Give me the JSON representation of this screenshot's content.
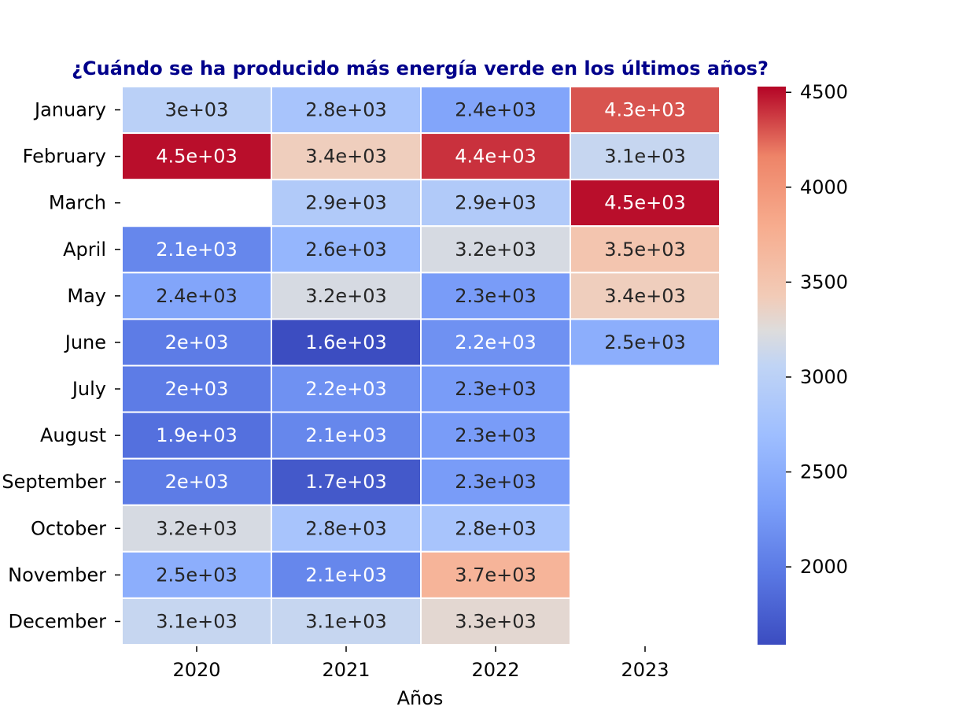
{
  "chart_data": {
    "type": "heatmap",
    "title": "¿Cuándo se ha producido más energía verde en los últimos años?",
    "xlabel": "Años",
    "ylabel": "",
    "x_categories": [
      "2020",
      "2021",
      "2022",
      "2023"
    ],
    "y_categories": [
      "January",
      "February",
      "March",
      "April",
      "May",
      "June",
      "July",
      "August",
      "September",
      "October",
      "November",
      "December"
    ],
    "values": [
      [
        3000,
        2800,
        2400,
        4300
      ],
      [
        4500,
        3400,
        4400,
        3100
      ],
      [
        null,
        2900,
        2900,
        4500
      ],
      [
        2100,
        2600,
        3200,
        3500
      ],
      [
        2400,
        3200,
        2300,
        3400
      ],
      [
        2000,
        1600,
        2200,
        2500
      ],
      [
        2000,
        2200,
        2300,
        null
      ],
      [
        1900,
        2100,
        2300,
        null
      ],
      [
        2000,
        1700,
        2300,
        null
      ],
      [
        3200,
        2800,
        2800,
        null
      ],
      [
        2500,
        2100,
        3700,
        null
      ],
      [
        3100,
        3100,
        3300,
        null
      ]
    ],
    "labels": [
      [
        "3e+03",
        "2.8e+03",
        "2.4e+03",
        "4.3e+03"
      ],
      [
        "4.5e+03",
        "3.4e+03",
        "4.4e+03",
        "3.1e+03"
      ],
      [
        "",
        "2.9e+03",
        "2.9e+03",
        "4.5e+03"
      ],
      [
        "2.1e+03",
        "2.6e+03",
        "3.2e+03",
        "3.5e+03"
      ],
      [
        "2.4e+03",
        "3.2e+03",
        "2.3e+03",
        "3.4e+03"
      ],
      [
        "2e+03",
        "1.6e+03",
        "2.2e+03",
        "2.5e+03"
      ],
      [
        "2e+03",
        "2.2e+03",
        "2.3e+03",
        ""
      ],
      [
        "1.9e+03",
        "2.1e+03",
        "2.3e+03",
        ""
      ],
      [
        "2e+03",
        "1.7e+03",
        "2.3e+03",
        ""
      ],
      [
        "3.2e+03",
        "2.8e+03",
        "2.8e+03",
        ""
      ],
      [
        "2.5e+03",
        "2.1e+03",
        "3.7e+03",
        ""
      ],
      [
        "3.1e+03",
        "3.1e+03",
        "3.3e+03",
        ""
      ]
    ],
    "colorbar": {
      "colormap": "coolwarm",
      "min": 1590,
      "max": 4530,
      "ticks": [
        2000,
        2500,
        3000,
        3500,
        4000,
        4500
      ]
    },
    "colors": {
      "title": "#00008b",
      "light_text": "#ffffff",
      "dark_text": "#262626"
    }
  }
}
